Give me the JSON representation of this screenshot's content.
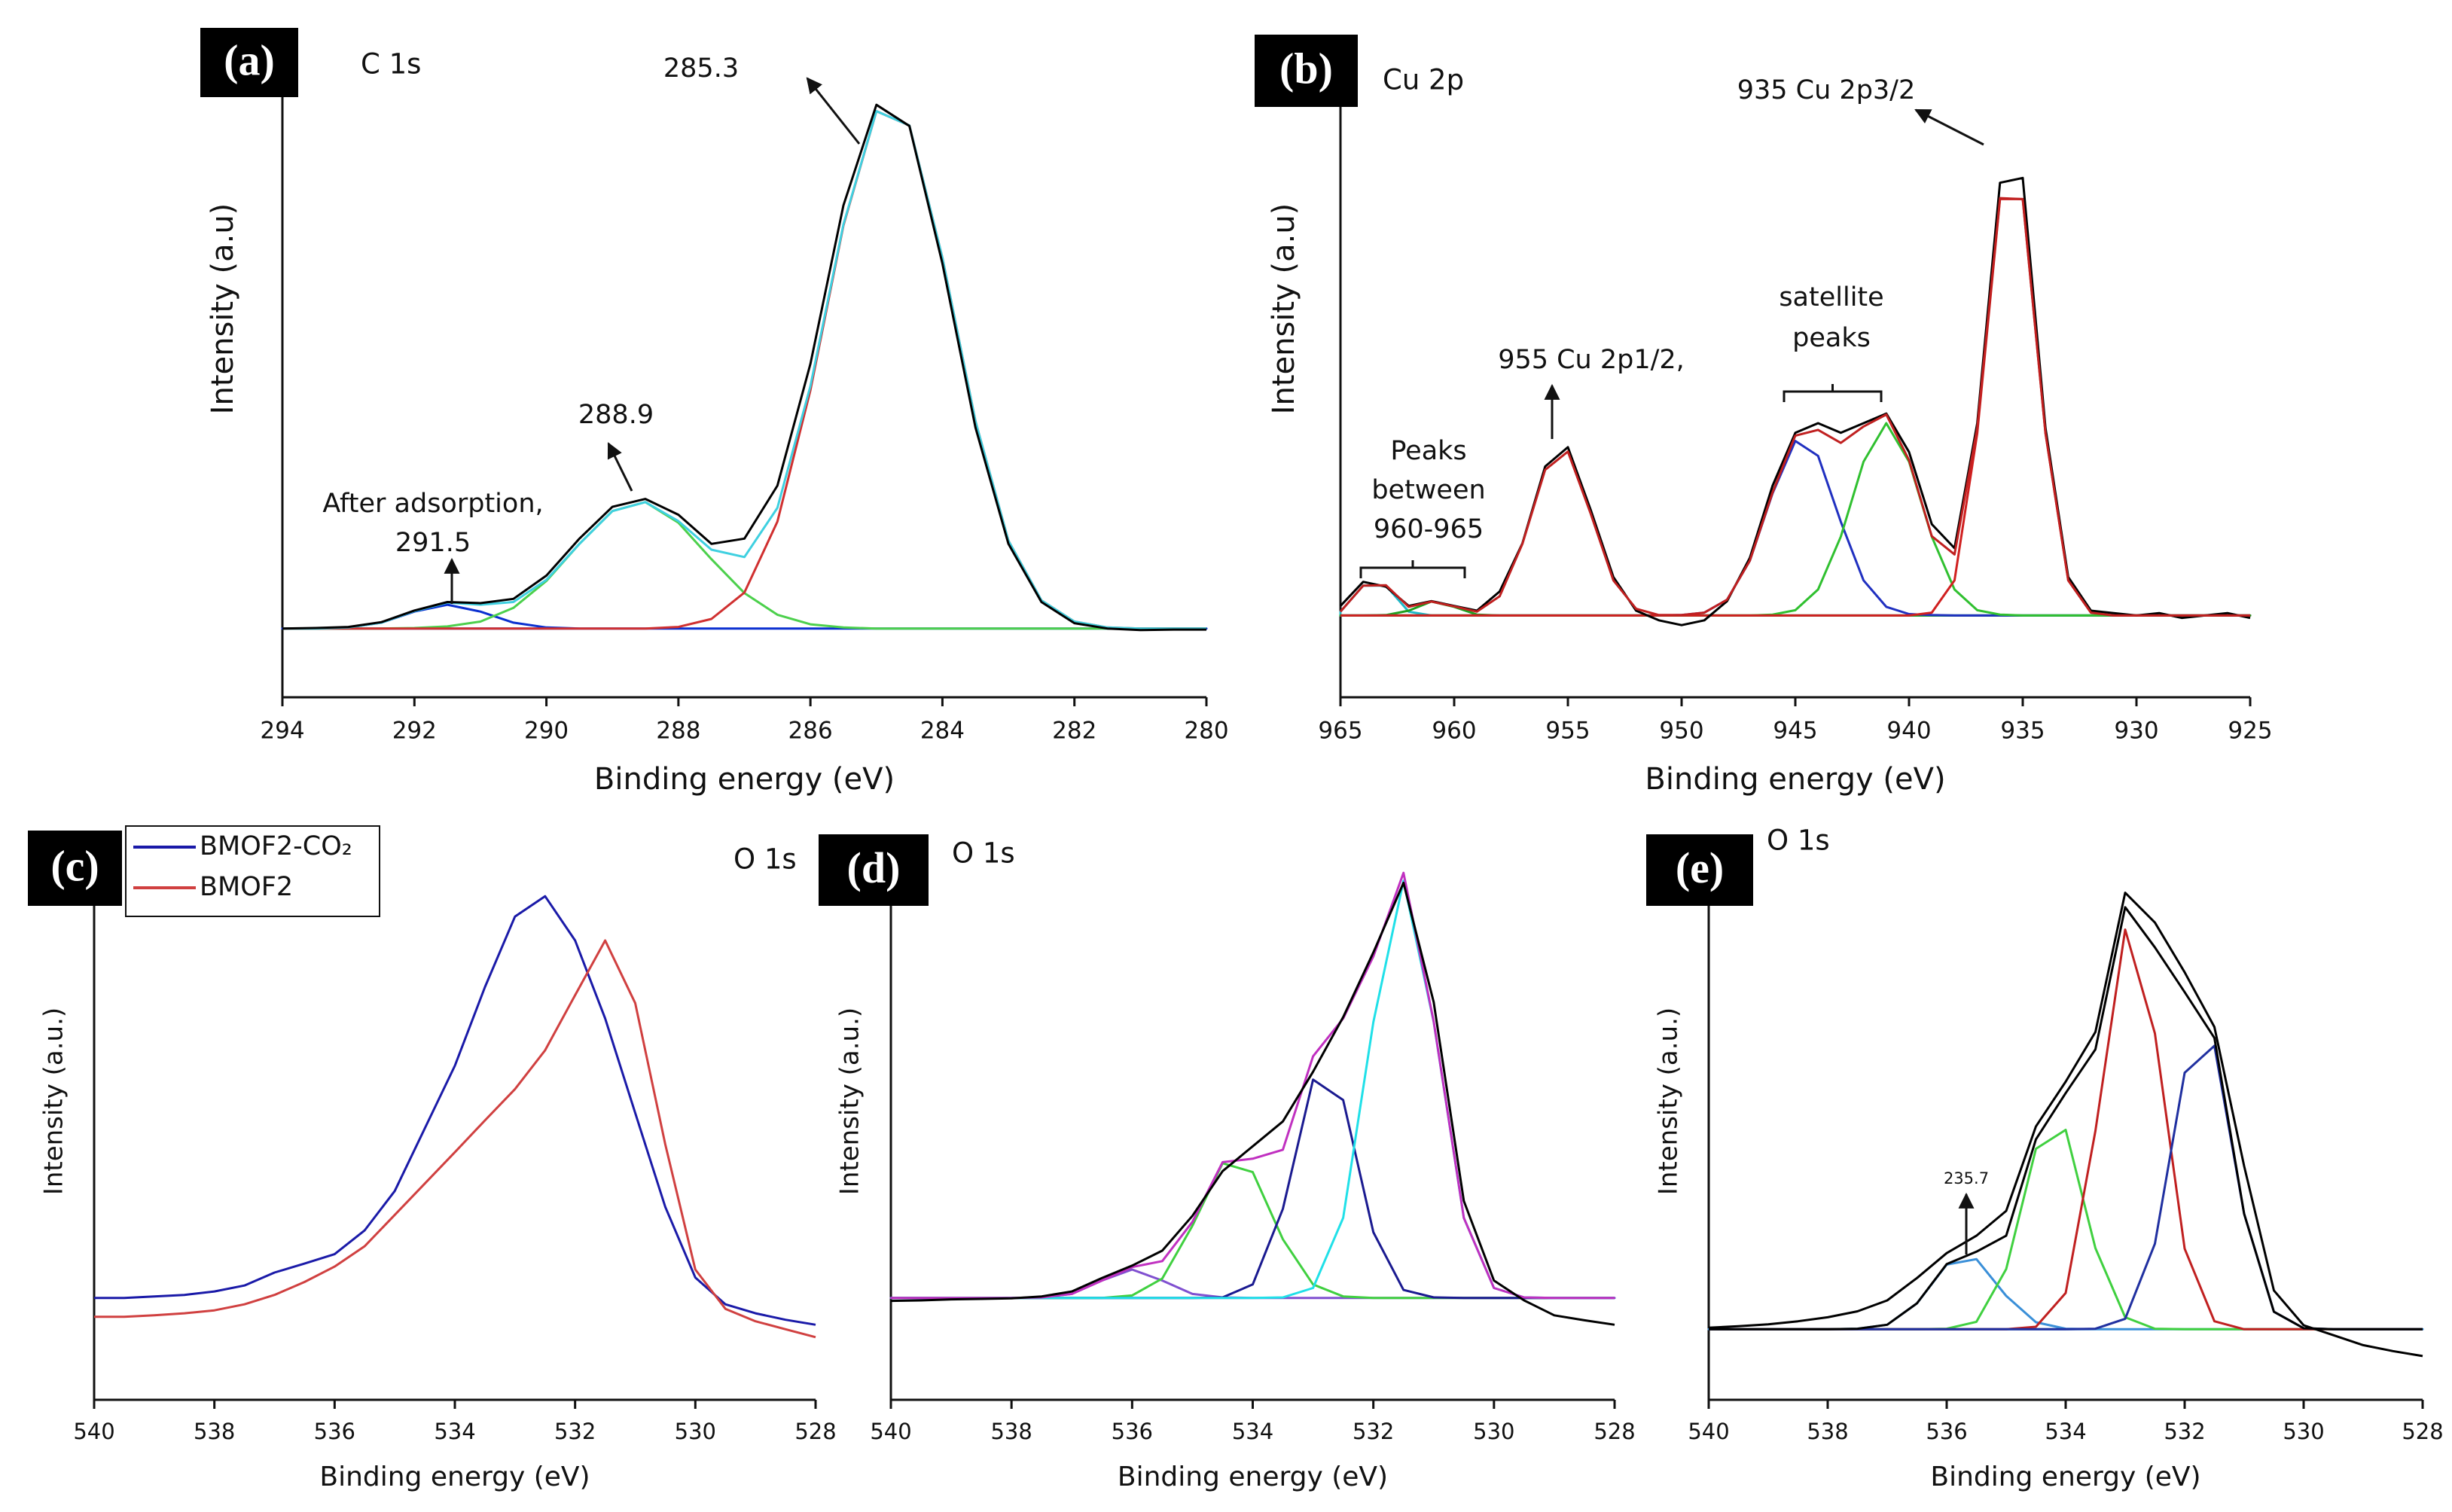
{
  "chart_data": [
    {
      "type": "line",
      "panel": "(a)",
      "title": "C 1s",
      "xlabel": "Binding energy (eV)",
      "ylabel": "Intensity (a.u)",
      "annotations": [
        "285.3",
        "288.9",
        "After adsorption,",
        "291.5"
      ],
      "xlim": [
        294,
        280
      ],
      "xticks": [
        294,
        292,
        290,
        288,
        286,
        284,
        282,
        280
      ],
      "ylim": [
        -13,
        107
      ],
      "x": [
        294,
        293.5,
        293,
        292.5,
        292,
        291.5,
        291,
        290.5,
        290,
        289.5,
        289,
        288.5,
        288,
        287.5,
        287,
        286.5,
        286,
        285.5,
        285,
        284.5,
        284,
        283.5,
        283,
        282.5,
        282,
        281.5,
        281,
        280.5,
        280
      ],
      "series": [
        {
          "color": "#0a2fd0",
          "fill": true,
          "values": [
            0,
            0,
            0.2,
            1.1,
            3.2,
            4.5,
            3.2,
            1.1,
            0.2,
            0,
            0,
            0,
            0,
            0,
            0,
            0,
            0,
            0,
            0,
            0,
            0,
            0,
            0,
            0,
            0,
            0,
            0,
            0,
            0
          ]
        },
        {
          "color": "#4cd04c",
          "values": [
            0,
            0,
            0,
            0,
            0.1,
            0.4,
            1.3,
            3.9,
            9,
            16,
            22.2,
            23.9,
            20,
            13.1,
            6.7,
            2.6,
            0.8,
            0.2,
            0,
            0,
            0,
            0,
            0,
            0,
            0,
            0,
            0,
            0,
            0
          ]
        },
        {
          "color": "#d03030",
          "values": [
            0,
            0,
            0,
            0,
            0,
            0,
            0,
            0,
            0,
            0,
            0,
            0,
            0.3,
            1.8,
            6.8,
            20.2,
            45,
            76.2,
            97.8,
            95.1,
            70.1,
            39.2,
            16.6,
            5.3,
            1.3,
            0.2,
            0,
            0,
            0
          ]
        },
        {
          "color": "#3fd0e0",
          "values": [
            0,
            0,
            0.2,
            1.1,
            3.3,
            4.9,
            4.5,
            5.0,
            9.2,
            16,
            22.2,
            23.9,
            20.3,
            14.9,
            13.5,
            22.8,
            45.8,
            76.4,
            97.8,
            95.1,
            70.1,
            39.2,
            16.6,
            5.3,
            1.3,
            0.2,
            0,
            0,
            0
          ]
        },
        {
          "color": "#000000",
          "values": [
            0,
            0.1,
            0.3,
            1.2,
            3.4,
            5,
            4.8,
            5.6,
            10,
            17,
            23,
            24.5,
            21.5,
            16,
            17,
            27,
            50,
            80,
            99,
            95,
            69,
            38,
            16,
            5,
            1,
            0,
            -0.3,
            -0.2,
            -0.2
          ]
        }
      ]
    },
    {
      "type": "line",
      "panel": "(b)",
      "title": "Cu 2p",
      "xlabel": "Binding energy (eV)",
      "ylabel": "Intensity (a.u)",
      "annotations": [
        "935 Cu 2p3/2",
        "955 Cu 2p1/2,",
        "satellite",
        "peaks",
        "Peaks",
        "between",
        "960-965"
      ],
      "xlim": [
        965,
        925
      ],
      "xticks": [
        965,
        960,
        955,
        950,
        945,
        940,
        935,
        930,
        925
      ],
      "ylim": [
        -17,
        115
      ],
      "x": [
        965,
        964,
        963,
        962,
        961,
        960,
        959,
        958,
        957,
        956,
        955,
        954,
        953,
        952,
        951,
        950,
        949,
        948,
        947,
        946,
        945,
        944,
        943,
        942,
        941,
        940,
        939,
        938,
        937,
        936,
        935,
        934,
        933,
        932,
        931,
        930,
        929,
        928,
        927,
        926,
        925
      ],
      "series": [
        {
          "color": "#20b8c8",
          "fill": true,
          "values": [
            0.8,
            6.2,
            6.2,
            0.8,
            0,
            0,
            0,
            0,
            0,
            0,
            0,
            0,
            0,
            0,
            0,
            0,
            0,
            0,
            0,
            0,
            0,
            0,
            0,
            0,
            0,
            0,
            0,
            0,
            0,
            0,
            0,
            0,
            0,
            0,
            0,
            0,
            0,
            0,
            0,
            0,
            0
          ]
        },
        {
          "color": "#20a020",
          "fill": true,
          "values": [
            0,
            0,
            0.1,
            1.0,
            2.9,
            1.8,
            0.2,
            0,
            0,
            0,
            0,
            0,
            0,
            0,
            0,
            0,
            0,
            0,
            0,
            0,
            0,
            0,
            0,
            0,
            0,
            0,
            0,
            0,
            0,
            0,
            0,
            0,
            0,
            0,
            0,
            0,
            0,
            0,
            0,
            0,
            0
          ]
        },
        {
          "color": "#2030c0",
          "values": [
            0,
            0,
            0,
            0,
            0,
            0,
            0,
            0,
            0,
            0,
            0,
            0,
            0,
            0,
            0,
            0.1,
            0.6,
            3.3,
            11.4,
            25.4,
            36.3,
            33.2,
            19.5,
            7.3,
            1.8,
            0.3,
            0.1,
            0,
            0,
            0,
            0,
            0,
            0,
            0,
            0,
            0,
            0,
            0,
            0,
            0,
            0
          ]
        },
        {
          "color": "#30c030",
          "values": [
            0,
            0,
            0,
            0,
            0,
            0,
            0,
            0,
            0,
            0,
            0,
            0,
            0,
            0,
            0,
            0,
            0,
            0,
            0,
            0.2,
            1.1,
            5.4,
            16.4,
            32,
            40,
            32,
            16.4,
            5.4,
            1.1,
            0.2,
            0,
            0,
            0,
            0,
            0,
            0,
            0,
            0,
            0,
            0,
            0
          ]
        },
        {
          "color": "#d02020",
          "values": [
            0,
            0,
            0,
            0,
            0,
            0,
            0,
            0,
            0,
            0,
            0,
            0,
            0,
            0,
            0,
            0,
            0,
            0,
            0,
            0,
            0,
            0,
            0,
            0,
            0,
            0,
            0.6,
            7.3,
            37.9,
            86.6,
            86.6,
            37.9,
            7.3,
            0.6,
            0,
            0,
            0,
            0,
            0,
            0,
            0
          ]
        },
        {
          "color": "#000000",
          "values": [
            2,
            7,
            6,
            2,
            3,
            2,
            1,
            5,
            15,
            31,
            35,
            22,
            8,
            1,
            -1,
            -2,
            -1,
            3,
            12,
            27,
            38,
            40,
            38,
            40,
            42,
            34,
            19,
            14,
            40,
            90,
            91,
            39,
            8,
            1,
            0.5,
            0,
            0.5,
            -0.5,
            0,
            0.5,
            -0.5
          ]
        },
        {
          "color": "#c02020",
          "values": [
            0.8,
            6.2,
            6.3,
            1.8,
            2.9,
            1.9,
            0.8,
            4.0,
            14.9,
            30.3,
            34.1,
            21.2,
            7.3,
            1.4,
            0.1,
            0.1,
            0.6,
            3.3,
            11.4,
            25.6,
            37.4,
            38.6,
            35.9,
            39.3,
            41.8,
            32.3,
            16.5,
            12.7,
            39,
            86.8,
            86.6,
            37.9,
            7.3,
            0.6,
            0,
            0,
            0,
            0,
            0,
            0,
            0
          ]
        }
      ]
    },
    {
      "type": "line",
      "panel": "(c)",
      "title": "O 1s",
      "xlabel": "Binding energy (eV)",
      "ylabel": "Intensity (a.u.)",
      "legend": "upper left",
      "xlim": [
        540,
        528
      ],
      "xticks": [
        540,
        538,
        536,
        534,
        532,
        530,
        528
      ],
      "ylim": [
        0,
        108
      ],
      "x": [
        540,
        539.5,
        539,
        538.5,
        538,
        537.5,
        537,
        536.5,
        536,
        535.5,
        535,
        534.5,
        534,
        533.5,
        533,
        532.5,
        532,
        531.5,
        531,
        530.5,
        530,
        529.5,
        529,
        528.5,
        528
      ],
      "series": [
        {
          "name": "BMOF2-CO₂",
          "color": "#1a1aa8",
          "values": [
            20.5,
            20.5,
            20.8,
            21.1,
            21.8,
            23.0,
            25.6,
            27.4,
            29.3,
            34.1,
            42.0,
            54.6,
            67.2,
            83.0,
            97.2,
            101.3,
            92.4,
            76.7,
            57.7,
            38.8,
            24.6,
            19.2,
            17.4,
            16.1,
            15.1
          ]
        },
        {
          "name": "BMOF2",
          "color": "#d04040",
          "values": [
            16.7,
            16.7,
            17.0,
            17.4,
            18.0,
            19.2,
            21.1,
            23.7,
            26.8,
            30.9,
            37.2,
            43.5,
            49.8,
            56.2,
            62.5,
            70.3,
            81.4,
            92.4,
            79.8,
            51.4,
            26.2,
            18.3,
            15.8,
            14.2,
            12.6
          ]
        }
      ]
    },
    {
      "type": "line",
      "panel": "(d)",
      "title": "O 1s",
      "xlabel": "Binding energy (eV)",
      "ylabel": "Intensity (a.u.)",
      "xlim": [
        540,
        528
      ],
      "xticks": [
        540,
        538,
        536,
        534,
        532,
        530,
        528
      ],
      "ylim": [
        0,
        108
      ],
      "x": [
        540,
        539.5,
        539,
        538.5,
        538,
        537.5,
        537,
        536.5,
        536,
        535.5,
        535,
        534.5,
        534,
        533.5,
        533,
        532.5,
        532,
        531.5,
        531,
        530.5,
        530,
        529.5,
        529,
        528.5,
        528
      ],
      "series": [
        {
          "color": "#8050d0",
          "fill": true,
          "values": [
            20.5,
            20.5,
            20.5,
            20.5,
            20.5,
            20.6,
            21.3,
            24,
            26.2,
            24,
            21.3,
            20.6,
            20.5,
            20.5,
            20.5,
            20.5,
            20.5,
            20.5,
            20.5,
            20.5,
            20.5,
            20.5,
            20.5,
            20.5,
            20.5
          ]
        },
        {
          "color": "#40d040",
          "values": [
            20.5,
            20.5,
            20.5,
            20.5,
            20.5,
            20.5,
            20.5,
            20.5,
            21,
            24.4,
            35,
            47.6,
            45.8,
            32.3,
            23.2,
            20.8,
            20.5,
            20.5,
            20.5,
            20.5,
            20.5,
            20.5,
            20.5,
            20.5,
            20.5
          ]
        },
        {
          "color": "#1a1a90",
          "values": [
            20.5,
            20.5,
            20.5,
            20.5,
            20.5,
            20.5,
            20.5,
            20.5,
            20.5,
            20.5,
            20.5,
            20.6,
            23.2,
            38.4,
            64.4,
            60.3,
            33.7,
            22.1,
            20.6,
            20.5,
            20.5,
            20.5,
            20.5,
            20.5,
            20.5
          ]
        },
        {
          "color": "#20e0e8",
          "values": [
            20.5,
            20.5,
            20.5,
            20.5,
            20.5,
            20.5,
            20.5,
            20.5,
            20.5,
            20.5,
            20.5,
            20.5,
            20.5,
            20.6,
            22.5,
            36.6,
            76,
            104.4,
            76,
            36.6,
            22.5,
            20.6,
            20.5,
            20.5,
            20.5
          ]
        },
        {
          "color": "#c030c0",
          "values": [
            20.5,
            20.5,
            20.5,
            20.5,
            20.5,
            20.6,
            21.3,
            24,
            26.7,
            27.9,
            35.8,
            47.8,
            48.5,
            50.3,
            69.1,
            76.7,
            89.2,
            106,
            76.1,
            36.6,
            22.5,
            20.6,
            20.5,
            20.5,
            20.5
          ]
        },
        {
          "color": "#000000",
          "values": [
            19.9,
            20,
            20.2,
            20.3,
            20.4,
            20.8,
            21.8,
            24.5,
            27,
            30,
            37,
            46,
            51,
            56,
            66,
            77,
            90,
            104,
            80,
            40,
            24,
            20,
            17,
            16,
            15.1
          ]
        }
      ]
    },
    {
      "type": "line",
      "panel": "(e)",
      "title": "O 1s",
      "xlabel": "Binding energy (eV)",
      "ylabel": "Intensity (a.u.)",
      "annotations": [
        "235.7"
      ],
      "xlim": [
        540,
        528
      ],
      "xticks": [
        540,
        538,
        536,
        534,
        532,
        530,
        528
      ],
      "ylim": [
        0,
        108
      ],
      "x": [
        540,
        539.5,
        539,
        538.5,
        538,
        537.5,
        537,
        536.5,
        536,
        535.5,
        535,
        534.5,
        534,
        533.5,
        533,
        532.5,
        532,
        531.5,
        531,
        530.5,
        530,
        529.5,
        529,
        528.5,
        528
      ],
      "series": [
        {
          "color": "#3a8fd8",
          "fill": true,
          "values": [
            14.2,
            14.2,
            14.2,
            14.2,
            14.2,
            14.3,
            15.1,
            19.4,
            27.2,
            28.3,
            20.9,
            15.6,
            14.3,
            14.2,
            14.2,
            14.2,
            14.2,
            14.2,
            14.2,
            14.2,
            14.2,
            14.2,
            14.2,
            14.2,
            14.2
          ]
        },
        {
          "color": "#40d040",
          "values": [
            14.2,
            14.2,
            14.2,
            14.2,
            14.2,
            14.2,
            14.2,
            14.2,
            14.3,
            15.7,
            26.3,
            50.5,
            54.3,
            30.5,
            16.6,
            14.3,
            14.2,
            14.2,
            14.2,
            14.2,
            14.2,
            14.2,
            14.2,
            14.2,
            14.2
          ]
        },
        {
          "color": "#c02020",
          "values": [
            14.2,
            14.2,
            14.2,
            14.2,
            14.2,
            14.2,
            14.2,
            14.2,
            14.2,
            14.2,
            14.2,
            14.7,
            21.5,
            54.1,
            94.6,
            73.7,
            30.4,
            15.8,
            14.2,
            14.2,
            14.2,
            14.2,
            14.2,
            14.2,
            14.2
          ]
        },
        {
          "color": "#2030a0",
          "values": [
            14.2,
            14.2,
            14.2,
            14.2,
            14.2,
            14.2,
            14.2,
            14.2,
            14.2,
            14.2,
            14.2,
            14.2,
            14.2,
            14.3,
            16.3,
            31.4,
            65.8,
            71.2,
            37.4,
            17.7,
            14.4,
            14.2,
            14.2,
            14.2,
            14.2
          ]
        },
        {
          "color": "#000000",
          "values": [
            14.2,
            14.2,
            14.2,
            14.2,
            14.2,
            14.3,
            15.1,
            19.4,
            27.3,
            29.8,
            33,
            52.4,
            61.7,
            70.5,
            99.1,
            91,
            82,
            72.8,
            37.4,
            17.7,
            14.4,
            14.2,
            14.2,
            14.2,
            14.2
          ]
        },
        {
          "color": "#000000",
          "values": [
            14.5,
            14.8,
            15.2,
            15.8,
            16.6,
            17.8,
            20,
            24.5,
            29.5,
            33,
            38,
            55,
            64,
            74,
            102,
            96,
            86,
            75,
            47,
            22,
            15,
            13,
            11,
            9.8,
            8.8
          ]
        }
      ]
    }
  ]
}
